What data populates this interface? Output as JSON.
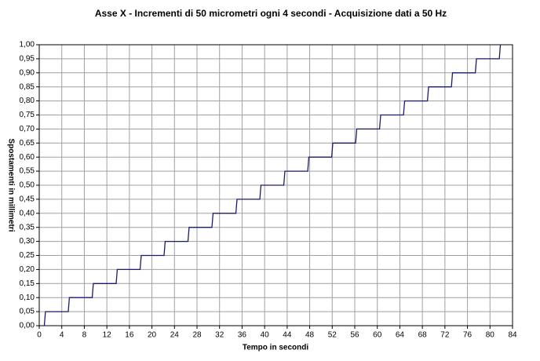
{
  "chart_data": {
    "type": "line",
    "title": "Asse X - Incrementi di 50 micrometri ogni 4 secondi - Acquisizione dati a 50 Hz",
    "x_label": "Tempo in secondi",
    "y_label": "Spostamenti in millimetri",
    "x": [
      0.8,
      0.9,
      1.1,
      5.15,
      5.35,
      9.4,
      9.6,
      13.65,
      13.85,
      17.9,
      18.1,
      22.15,
      22.35,
      26.4,
      26.6,
      30.65,
      30.85,
      34.9,
      35.1,
      39.15,
      39.35,
      43.4,
      43.6,
      47.65,
      47.85,
      51.9,
      52.1,
      56.15,
      56.35,
      60.4,
      60.6,
      64.65,
      64.85,
      68.9,
      69.1,
      73.15,
      73.35,
      77.4,
      77.6,
      81.65,
      81.85
    ],
    "values": [
      0,
      0,
      0.05,
      0.05,
      0.1,
      0.1,
      0.15,
      0.15,
      0.2,
      0.2,
      0.25,
      0.25,
      0.3,
      0.3,
      0.35,
      0.35,
      0.4,
      0.4,
      0.45,
      0.45,
      0.5,
      0.5,
      0.55,
      0.55,
      0.6,
      0.6,
      0.65,
      0.65,
      0.7,
      0.7,
      0.75,
      0.75,
      0.8,
      0.8,
      0.85,
      0.85,
      0.9,
      0.9,
      0.95,
      0.95,
      1.0
    ],
    "color": "#1c1c6e",
    "xlim": [
      0,
      84
    ],
    "xticks": [
      0,
      4,
      8,
      12,
      16,
      20,
      24,
      28,
      32,
      36,
      40,
      44,
      48,
      52,
      56,
      60,
      64,
      68,
      72,
      76,
      80,
      84
    ],
    "ylim": [
      0,
      1
    ],
    "yticks": [
      {
        "value": 0,
        "label": "0,00"
      },
      {
        "value": 0.05,
        "label": "0,05"
      },
      {
        "value": 0.1,
        "label": "0,10"
      },
      {
        "value": 0.15,
        "label": "0,15"
      },
      {
        "value": 0.2,
        "label": "0,20"
      },
      {
        "value": 0.25,
        "label": "0,25"
      },
      {
        "value": 0.3,
        "label": "0,30"
      },
      {
        "value": 0.35,
        "label": "0,35"
      },
      {
        "value": 0.4,
        "label": "0,40"
      },
      {
        "value": 0.45,
        "label": "0,45"
      },
      {
        "value": 0.5,
        "label": "0,50"
      },
      {
        "value": 0.55,
        "label": "0,55"
      },
      {
        "value": 0.6,
        "label": "0,60"
      },
      {
        "value": 0.65,
        "label": "0,65"
      },
      {
        "value": 0.7,
        "label": "0,70"
      },
      {
        "value": 0.75,
        "label": "0,75"
      },
      {
        "value": 0.8,
        "label": "0,80"
      },
      {
        "value": 0.85,
        "label": "0,85"
      },
      {
        "value": 0.9,
        "label": "0,90"
      },
      {
        "value": 0.95,
        "label": "0,95"
      },
      {
        "value": 1,
        "label": "1,00"
      }
    ],
    "grid": true
  }
}
